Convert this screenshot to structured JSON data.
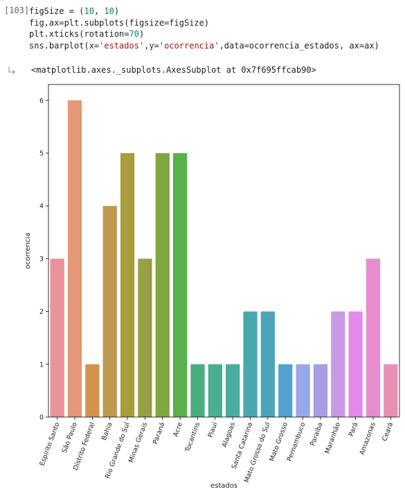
{
  "cell": {
    "exec_count": "[103]",
    "code_lines": [
      [
        {
          "t": "figSize = ("
        },
        {
          "t": "10",
          "c": "num"
        },
        {
          "t": ", "
        },
        {
          "t": "10",
          "c": "num"
        },
        {
          "t": ")"
        }
      ],
      [
        {
          "t": "fig,ax=plt.subplots(figsize=figSize)"
        }
      ],
      [
        {
          "t": "plt.xticks(rotation="
        },
        {
          "t": "70",
          "c": "num"
        },
        {
          "t": ")"
        }
      ],
      [
        {
          "t": "sns.barplot(x="
        },
        {
          "t": "'estados'",
          "c": "str"
        },
        {
          "t": ",y="
        },
        {
          "t": "'ocorrencia'",
          "c": "str"
        },
        {
          "t": ",data=ocorrencia_estados, ax=ax)"
        }
      ]
    ]
  },
  "output": {
    "text": "<matplotlib.axes._subplots.AxesSubplot at 0x7f695ffcab90>",
    "icon": "output-arrow-icon"
  },
  "chart_data": {
    "type": "bar",
    "categories": [
      "Espírito Santo",
      "São Paulo",
      "Distrito Federal",
      "Bahia",
      "Rio Grande do Sul",
      "Minas Gerais",
      "Paraná",
      "Acre",
      "Tocantins",
      "Piauí",
      "Alagoas",
      "Santa Catarina",
      "Mato Grosso do Sul",
      "Mato Grosso",
      "Pernambuco",
      "Paraíba",
      "Maranhão",
      "Pará",
      "Amazonas",
      "Ceará"
    ],
    "values": [
      3,
      6,
      1,
      4,
      5,
      3,
      5,
      5,
      1,
      1,
      1,
      2,
      2,
      1,
      1,
      1,
      2,
      2,
      3,
      1
    ],
    "colors": [
      "#e8929a",
      "#e49779",
      "#d4934b",
      "#bd9a50",
      "#a89d3b",
      "#9a9e44",
      "#80a840",
      "#5ab04c",
      "#49ae7f",
      "#4bad92",
      "#4aab9f",
      "#48a9ad",
      "#4aa5bb",
      "#52a1ce",
      "#95a8e9",
      "#a79ee3",
      "#c69ae8",
      "#e689e7",
      "#e78dcf",
      "#e690b6"
    ],
    "xlabel": "estados",
    "ylabel": "ocorrencia",
    "ylim": [
      0,
      6.3
    ],
    "yticks": [
      0,
      1,
      2,
      3,
      4,
      5,
      6
    ],
    "xtick_rotation": 70,
    "grid": false,
    "legend": false
  }
}
